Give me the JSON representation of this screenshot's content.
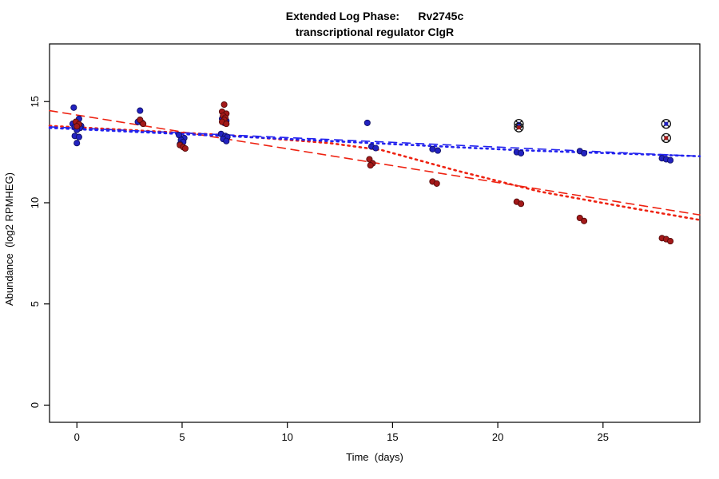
{
  "title": {
    "line1": "Extended Log Phase:      Rv2745c",
    "line2": "transcriptional regulator ClgR"
  },
  "axes": {
    "xlabel": "Time  (days)",
    "ylabel": "Abundance  (log2 RPMHEG)",
    "x_ticks": [
      0,
      5,
      10,
      15,
      20,
      25
    ],
    "y_ticks": [
      0,
      5,
      10,
      15
    ],
    "xlim": [
      -1.3,
      29.6
    ],
    "ylim": [
      -0.85,
      17.85
    ]
  },
  "colors": {
    "blue_point_fill": "#2222c0",
    "blue_point_edge": "#111166",
    "red_point_fill": "#a31919",
    "red_point_edge": "#550a0a",
    "blue_line": "#2222ee",
    "red_line": "#ee2211",
    "axis": "#000000"
  },
  "chart_data": {
    "type": "scatter",
    "title": "Extended Log Phase: Rv2745c transcriptional regulator ClgR",
    "xlabel": "Time (days)",
    "ylabel": "Abundance (log2 RPMHEG)",
    "xlim": [
      -1.3,
      29.6
    ],
    "ylim": [
      -0.85,
      17.85
    ],
    "grid": false,
    "legend": "none",
    "series": [
      {
        "name": "blue-abundance-points",
        "color_key": "blue_point_fill",
        "edge_key": "blue_point_edge",
        "points": [
          [
            -0.15,
            14.7
          ],
          [
            0.1,
            14.15
          ],
          [
            -0.2,
            13.9
          ],
          [
            0.05,
            13.85
          ],
          [
            0.2,
            13.8
          ],
          [
            -0.1,
            13.75
          ],
          [
            0.15,
            13.7
          ],
          [
            0.0,
            13.6
          ],
          [
            -0.1,
            13.3
          ],
          [
            0.1,
            13.25
          ],
          [
            0.0,
            12.95
          ],
          [
            3.0,
            14.55
          ],
          [
            2.9,
            14.0
          ],
          [
            3.1,
            13.95
          ],
          [
            4.85,
            13.35
          ],
          [
            5.1,
            13.2
          ],
          [
            4.95,
            13.1
          ],
          [
            5.05,
            13.0
          ],
          [
            4.9,
            12.9
          ],
          [
            6.9,
            14.15
          ],
          [
            7.1,
            14.05
          ],
          [
            7.0,
            13.95
          ],
          [
            6.85,
            13.4
          ],
          [
            7.05,
            13.3
          ],
          [
            7.15,
            13.25
          ],
          [
            6.95,
            13.15
          ],
          [
            7.1,
            13.05
          ],
          [
            13.8,
            13.95
          ],
          [
            14.0,
            12.78
          ],
          [
            14.2,
            12.7
          ],
          [
            16.9,
            12.65
          ],
          [
            17.15,
            12.58
          ],
          [
            20.9,
            12.5
          ],
          [
            21.1,
            12.45
          ],
          [
            23.9,
            12.55
          ],
          [
            24.1,
            12.45
          ],
          [
            27.8,
            12.2
          ],
          [
            28.0,
            12.15
          ],
          [
            28.2,
            12.1
          ]
        ]
      },
      {
        "name": "red-abundance-points",
        "color_key": "red_point_fill",
        "edge_key": "red_point_edge",
        "points": [
          [
            -0.05,
            14.0
          ],
          [
            0.1,
            13.88
          ],
          [
            0.0,
            13.78
          ],
          [
            3.0,
            14.1
          ],
          [
            3.15,
            13.9
          ],
          [
            4.9,
            12.85
          ],
          [
            5.05,
            12.75
          ],
          [
            5.15,
            12.68
          ],
          [
            7.0,
            14.85
          ],
          [
            6.9,
            14.5
          ],
          [
            7.1,
            14.4
          ],
          [
            6.95,
            14.3
          ],
          [
            7.05,
            14.2
          ],
          [
            7.0,
            14.1
          ],
          [
            6.9,
            14.0
          ],
          [
            7.1,
            13.9
          ],
          [
            13.9,
            12.15
          ],
          [
            14.05,
            11.95
          ],
          [
            13.95,
            11.85
          ],
          [
            16.9,
            11.05
          ],
          [
            17.1,
            10.95
          ],
          [
            20.9,
            10.05
          ],
          [
            21.1,
            9.95
          ],
          [
            23.9,
            9.25
          ],
          [
            24.1,
            9.1
          ],
          [
            27.8,
            8.25
          ],
          [
            28.0,
            8.2
          ],
          [
            28.2,
            8.1
          ]
        ]
      }
    ],
    "outlier_markers": [
      {
        "x": 21,
        "y": 13.9,
        "color_key": "blue_point_fill"
      },
      {
        "x": 21,
        "y": 13.72,
        "color_key": "red_point_fill"
      },
      {
        "x": 28,
        "y": 13.9,
        "color_key": "blue_point_fill"
      },
      {
        "x": 28,
        "y": 13.2,
        "color_key": "red_point_fill"
      }
    ],
    "trend_lines": [
      {
        "name": "red-dashed-fit",
        "color_key": "red_line",
        "style": "dashed",
        "points": [
          [
            -1.3,
            14.55
          ],
          [
            29.6,
            9.4
          ]
        ]
      },
      {
        "name": "red-dotted-fit",
        "color_key": "red_line",
        "style": "dotted",
        "points": [
          [
            -1.3,
            13.8
          ],
          [
            7,
            13.35
          ],
          [
            12,
            12.95
          ],
          [
            14.5,
            12.6
          ],
          [
            18,
            11.6
          ],
          [
            22,
            10.55
          ],
          [
            26,
            9.8
          ],
          [
            29.6,
            9.15
          ]
        ]
      },
      {
        "name": "blue-dashed-fit",
        "color_key": "blue_line",
        "style": "dashed",
        "points": [
          [
            -1.3,
            13.75
          ],
          [
            29.6,
            12.3
          ]
        ]
      },
      {
        "name": "blue-dotted-fit",
        "color_key": "blue_line",
        "style": "dotted",
        "points": [
          [
            -1.3,
            13.7
          ],
          [
            7,
            13.3
          ],
          [
            14,
            12.95
          ],
          [
            21,
            12.6
          ],
          [
            29.6,
            12.3
          ]
        ]
      }
    ]
  }
}
